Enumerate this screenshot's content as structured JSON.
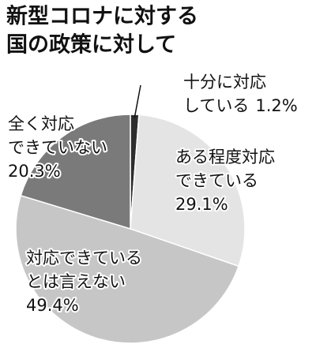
{
  "chart_data": {
    "type": "pie",
    "title": [
      "新型コロナに対する",
      "国の政策に対して"
    ],
    "categories": [
      [
        "十分に対応",
        "している"
      ],
      [
        "ある程度対応",
        "できている"
      ],
      [
        "対応できている",
        "とは言えない"
      ],
      [
        "全く対応",
        "できていない"
      ]
    ],
    "values": [
      1.2,
      29.1,
      49.4,
      20.3
    ],
    "value_labels": [
      "1.2%",
      "29.1%",
      "49.4%",
      "20.3%"
    ],
    "colors": [
      "#2e2e2e",
      "#e4e4e4",
      "#c6c6c6",
      "#7a7a7a"
    ]
  }
}
